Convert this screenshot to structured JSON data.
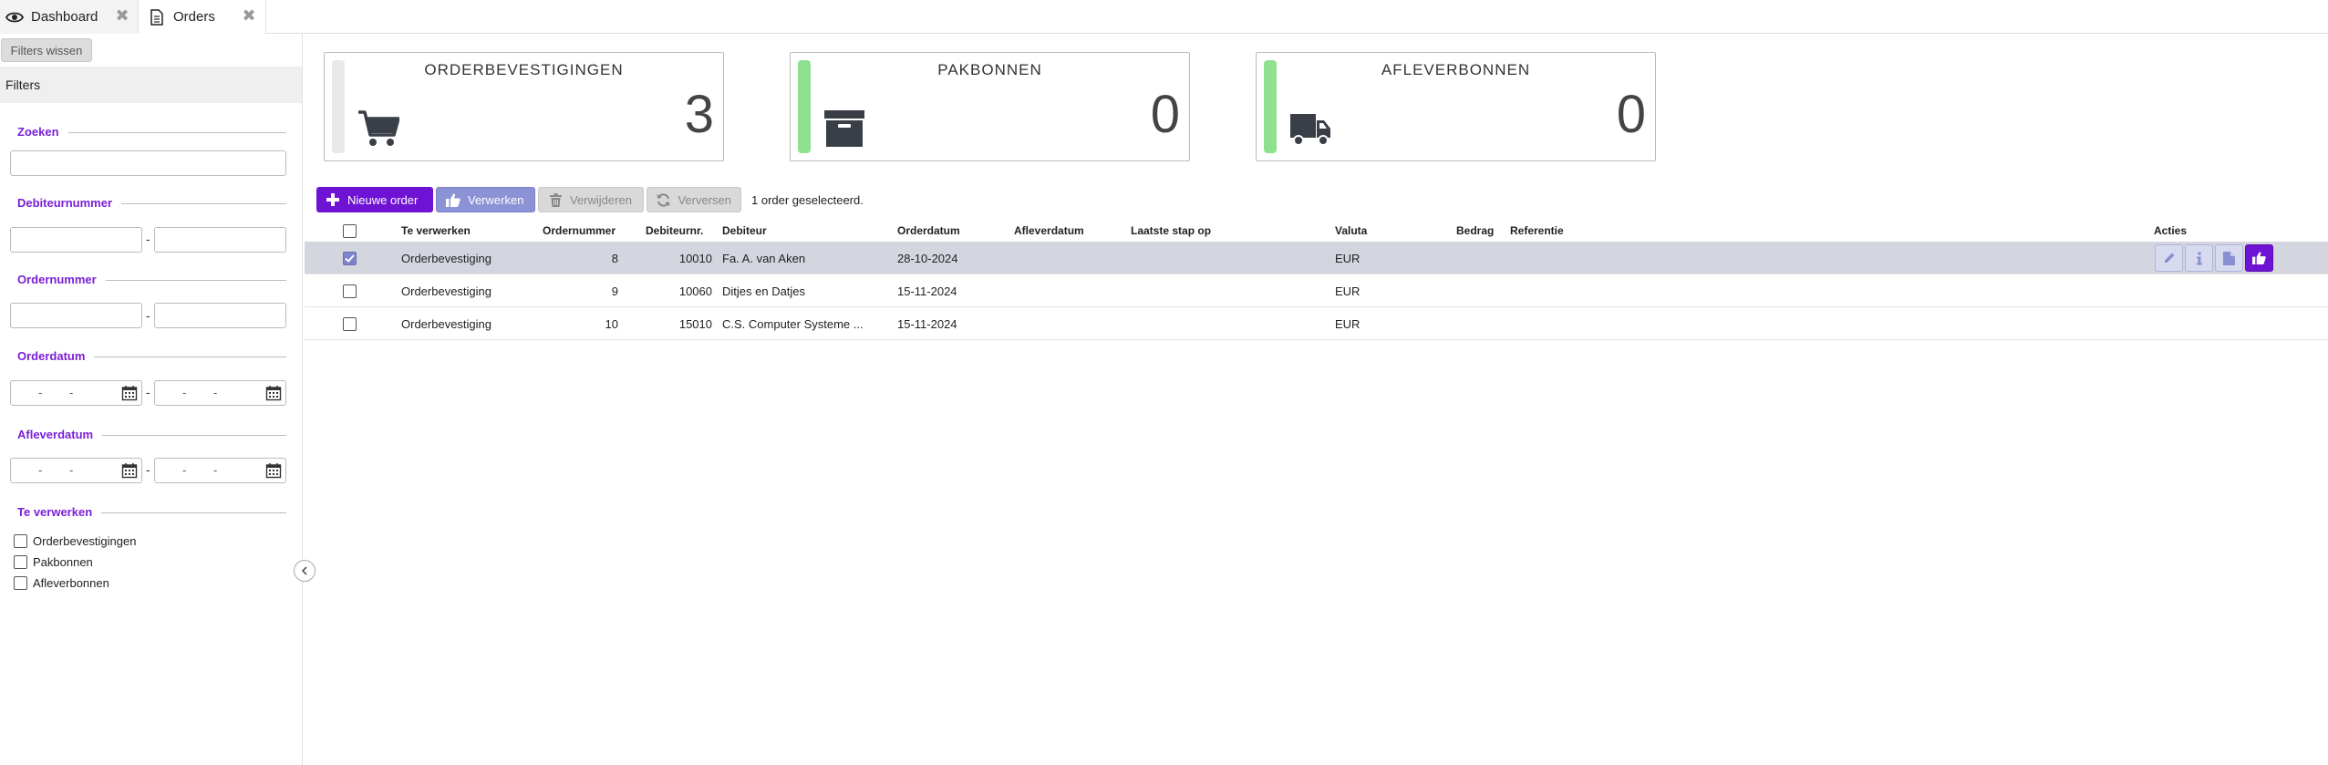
{
  "tabs": [
    {
      "label": "Dashboard",
      "icon": "eye-icon"
    },
    {
      "label": "Orders",
      "icon": "document-icon"
    }
  ],
  "sidebar": {
    "clear_label": "Filters wissen",
    "header": "Filters",
    "groups": {
      "search": "Zoeken",
      "debtor_number": "Debiteurnummer",
      "order_number": "Ordernummer",
      "order_date": "Orderdatum",
      "delivery_date": "Afleverdatum",
      "to_process": "Te verwerken"
    },
    "range_dash": "-",
    "date_sep": "-",
    "checkboxes": [
      "Orderbevestigingen",
      "Pakbonnen",
      "Afleverbonnen"
    ]
  },
  "cards": [
    {
      "title": "ORDERBEVESTIGINGEN",
      "value": "3",
      "bar_color": "#e8e8e8",
      "icon": "cart-icon"
    },
    {
      "title": "PAKBONNEN",
      "value": "0",
      "bar_color": "#8fe08f",
      "icon": "archive-box-icon"
    },
    {
      "title": "AFLEVERBONNEN",
      "value": "0",
      "bar_color": "#8fe08f",
      "icon": "truck-icon"
    }
  ],
  "toolbar": {
    "new_label": "Nieuwe order",
    "process_label": "Verwerken",
    "delete_label": "Verwijderen",
    "refresh_label": "Verversen",
    "status_text": "1 order geselecteerd."
  },
  "table": {
    "columns": {
      "to_process": "Te verwerken",
      "order_number": "Ordernummer",
      "debtor_number": "Debiteurnr.",
      "debtor": "Debiteur",
      "order_date": "Orderdatum",
      "delivery_date": "Afleverdatum",
      "last_step": "Laatste stap op",
      "currency": "Valuta",
      "amount": "Bedrag",
      "reference": "Referentie",
      "actions": "Acties"
    },
    "rows": [
      {
        "selected": true,
        "to_process": "Orderbevestiging",
        "order_number": "8",
        "debtor_number": "10010",
        "debtor": "Fa. A. van Aken",
        "order_date": "28-10-2024",
        "currency": "EUR"
      },
      {
        "selected": false,
        "to_process": "Orderbevestiging",
        "order_number": "9",
        "debtor_number": "10060",
        "debtor": "Ditjes en Datjes",
        "order_date": "15-11-2024",
        "currency": "EUR"
      },
      {
        "selected": false,
        "to_process": "Orderbevestiging",
        "order_number": "10",
        "debtor_number": "15010",
        "debtor": "C.S. Computer Systeme ...",
        "order_date": "15-11-2024",
        "currency": "EUR"
      }
    ]
  },
  "colors": {
    "accent": "#6e12d4",
    "filter_title": "#7a1fd6",
    "selected_row": "#d3d6de"
  }
}
